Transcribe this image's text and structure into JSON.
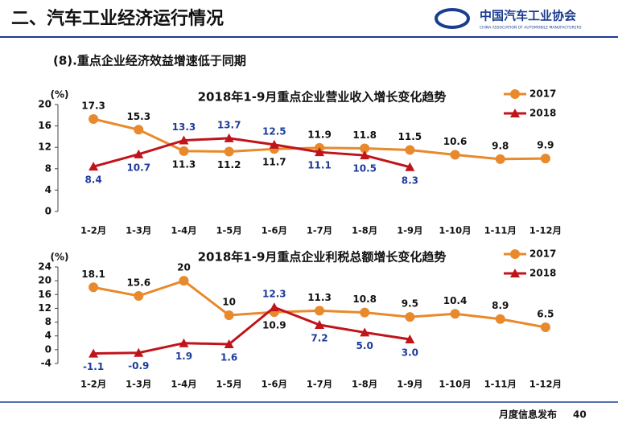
{
  "header": {
    "title": "二、汽车工业经济运行情况",
    "logo": "中国汽车工业协会",
    "logo_en": "CHINA ASSOCIATION OF AUTOMOBILE MANUFACTURERS",
    "subtitle": "(8).重点企业经济效益增速低于同期"
  },
  "footer": {
    "text": "月度信息发布",
    "page": "40"
  },
  "chart_data": [
    {
      "type": "line",
      "title": "2018年1-9月重点企业营业收入增长变化趋势",
      "ylabel": "(%)",
      "categories": [
        "1-2月",
        "1-3月",
        "1-4月",
        "1-5月",
        "1-6月",
        "1-7月",
        "1-8月",
        "1-9月",
        "1-10月",
        "1-11月",
        "1-12月"
      ],
      "series": [
        {
          "name": "2017",
          "color": "#e8892b",
          "marker": "circle",
          "label_color": "#111111",
          "values": [
            17.3,
            15.3,
            11.3,
            11.2,
            11.7,
            11.9,
            11.8,
            11.5,
            10.6,
            9.8,
            9.9
          ]
        },
        {
          "name": "2018",
          "color": "#c0141b",
          "marker": "triangle",
          "label_color": "#1f3c9b",
          "values": [
            8.4,
            10.7,
            13.3,
            13.7,
            12.5,
            11.1,
            10.5,
            8.3,
            null,
            null,
            null
          ]
        }
      ],
      "ylim": [
        0,
        20
      ],
      "yticks": [
        0,
        4,
        8,
        12,
        16,
        20
      ],
      "legend": "top-right"
    },
    {
      "type": "line",
      "title": "2018年1-9月重点企业利税总额增长变化趋势",
      "ylabel": "(%)",
      "categories": [
        "1-2月",
        "1-3月",
        "1-4月",
        "1-5月",
        "1-6月",
        "1-7月",
        "1-8月",
        "1-9月",
        "1-10月",
        "1-11月",
        "1-12月"
      ],
      "series": [
        {
          "name": "2017",
          "color": "#e8892b",
          "marker": "circle",
          "label_color": "#111111",
          "values": [
            18.1,
            15.6,
            20,
            10,
            10.9,
            11.3,
            10.8,
            9.5,
            10.4,
            8.9,
            6.5
          ]
        },
        {
          "name": "2018",
          "color": "#c0141b",
          "marker": "triangle",
          "label_color": "#1f3c9b",
          "values": [
            -1.1,
            -0.9,
            1.9,
            1.6,
            12.3,
            7.2,
            5.0,
            3.0,
            null,
            null,
            null
          ],
          "value_labels": [
            "-1.1",
            "-0.9",
            "1.9",
            "1.6",
            "12.3",
            "7.2",
            "5.0",
            "3.0",
            null,
            null,
            null
          ]
        }
      ],
      "ylim": [
        -4,
        24
      ],
      "yticks": [
        -4,
        0,
        4,
        8,
        12,
        16,
        20,
        24
      ],
      "legend": "top-right"
    }
  ]
}
